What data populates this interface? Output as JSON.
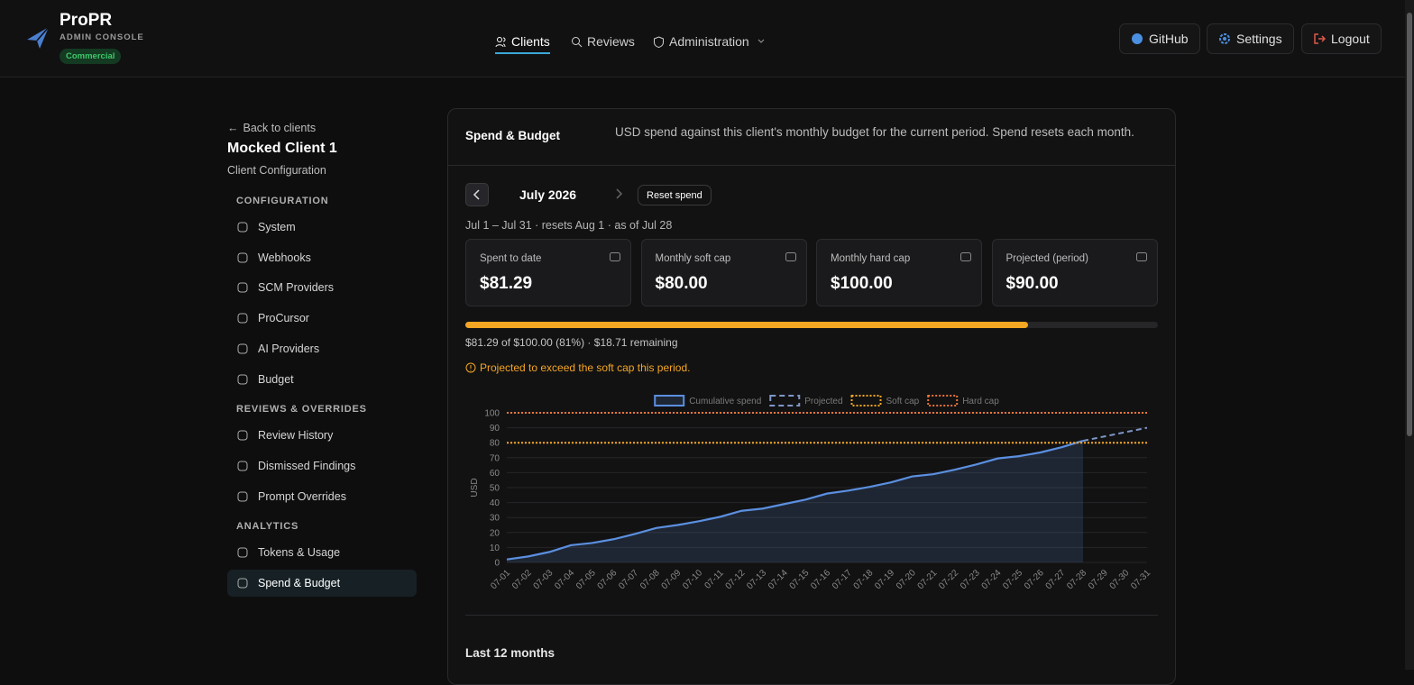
{
  "header": {
    "brand": "ProPR",
    "subtitle": "ADMIN CONSOLE",
    "badge": "Commercial",
    "nav": [
      {
        "label": "Clients",
        "active": true
      },
      {
        "label": "Reviews",
        "active": false
      },
      {
        "label": "Administration",
        "active": false
      }
    ],
    "actions": [
      "GitHub",
      "Settings",
      "Logout"
    ]
  },
  "sidebar": {
    "back": "Back to clients",
    "client": "Mocked Client 1",
    "subtitle": "Client Configuration",
    "sections": [
      {
        "title": "CONFIGURATION",
        "items": [
          {
            "label": "System",
            "active": false
          },
          {
            "label": "Webhooks",
            "active": false
          },
          {
            "label": "SCM Providers",
            "active": false
          },
          {
            "label": "ProCursor",
            "active": false
          },
          {
            "label": "AI Providers",
            "active": false
          },
          {
            "label": "Budget",
            "active": false
          }
        ]
      },
      {
        "title": "REVIEWS & OVERRIDES",
        "items": [
          {
            "label": "Review History",
            "active": false
          },
          {
            "label": "Dismissed Findings",
            "active": false
          },
          {
            "label": "Prompt Overrides",
            "active": false
          }
        ]
      },
      {
        "title": "ANALYTICS",
        "items": [
          {
            "label": "Tokens & Usage",
            "active": false
          },
          {
            "label": "Spend & Budget",
            "active": true
          }
        ]
      }
    ]
  },
  "panel": {
    "title": "Spend & Budget",
    "description": "USD spend against this client's monthly budget for the current period. Spend resets each month.",
    "month": "July 2026",
    "reset": "Reset spend",
    "period": "Jul 1 – Jul 31 · resets Aug 1 · as of Jul 28",
    "cards": [
      {
        "label": "Spent to date",
        "value": "$81.29"
      },
      {
        "label": "Monthly soft cap",
        "value": "$80.00"
      },
      {
        "label": "Monthly hard cap",
        "value": "$100.00"
      },
      {
        "label": "Projected (period)",
        "value": "$90.00"
      }
    ],
    "progress": {
      "value": 81.29,
      "max": 100,
      "color": "#f5a623",
      "label": "$81.29 of $100.00 (81%) · $18.71 remaining"
    },
    "warning": "Projected to exceed the soft cap this period.",
    "last": "Last 12 months"
  },
  "chart_data": {
    "type": "line",
    "ylabel": "USD",
    "categories": [
      "07-01",
      "07-02",
      "07-03",
      "07-04",
      "07-05",
      "07-06",
      "07-07",
      "07-08",
      "07-09",
      "07-10",
      "07-11",
      "07-12",
      "07-13",
      "07-14",
      "07-15",
      "07-16",
      "07-17",
      "07-18",
      "07-19",
      "07-20",
      "07-21",
      "07-22",
      "07-23",
      "07-24",
      "07-25",
      "07-26",
      "07-27",
      "07-28",
      "07-29",
      "07-30",
      "07-31"
    ],
    "series": [
      {
        "name": "Cumulative spend",
        "color": "#5b8fe0",
        "line_style": "solid",
        "fill": true,
        "values": [
          2,
          4,
          7,
          11.5,
          13,
          15.5,
          19,
          23,
          25,
          27.5,
          30.5,
          34.5,
          36,
          39,
          42,
          46,
          48,
          50.5,
          53.5,
          57.5,
          59,
          62,
          65.5,
          69.5,
          71,
          73.5,
          77,
          81.29,
          null,
          null,
          null
        ]
      },
      {
        "name": "Projected",
        "color": "#7f97c7",
        "line_style": "dashed",
        "fill": false,
        "values": [
          null,
          null,
          null,
          null,
          null,
          null,
          null,
          null,
          null,
          null,
          null,
          null,
          null,
          null,
          null,
          null,
          null,
          null,
          null,
          null,
          null,
          null,
          null,
          null,
          null,
          null,
          null,
          81.29,
          84.2,
          87.1,
          90
        ]
      },
      {
        "name": "Soft cap",
        "color": "#f5a623",
        "line_style": "dotted",
        "fill": false,
        "values": [
          80,
          80,
          80,
          80,
          80,
          80,
          80,
          80,
          80,
          80,
          80,
          80,
          80,
          80,
          80,
          80,
          80,
          80,
          80,
          80,
          80,
          80,
          80,
          80,
          80,
          80,
          80,
          80,
          80,
          80,
          80
        ]
      },
      {
        "name": "Hard cap",
        "color": "#e8743b",
        "line_style": "dotted",
        "fill": false,
        "values": [
          100,
          100,
          100,
          100,
          100,
          100,
          100,
          100,
          100,
          100,
          100,
          100,
          100,
          100,
          100,
          100,
          100,
          100,
          100,
          100,
          100,
          100,
          100,
          100,
          100,
          100,
          100,
          100,
          100,
          100,
          100
        ]
      }
    ],
    "ylim": [
      0,
      100
    ],
    "yticks": [
      0,
      10,
      20,
      30,
      40,
      50,
      60,
      70,
      80,
      90,
      100
    ],
    "grid": true,
    "legend": "top"
  }
}
